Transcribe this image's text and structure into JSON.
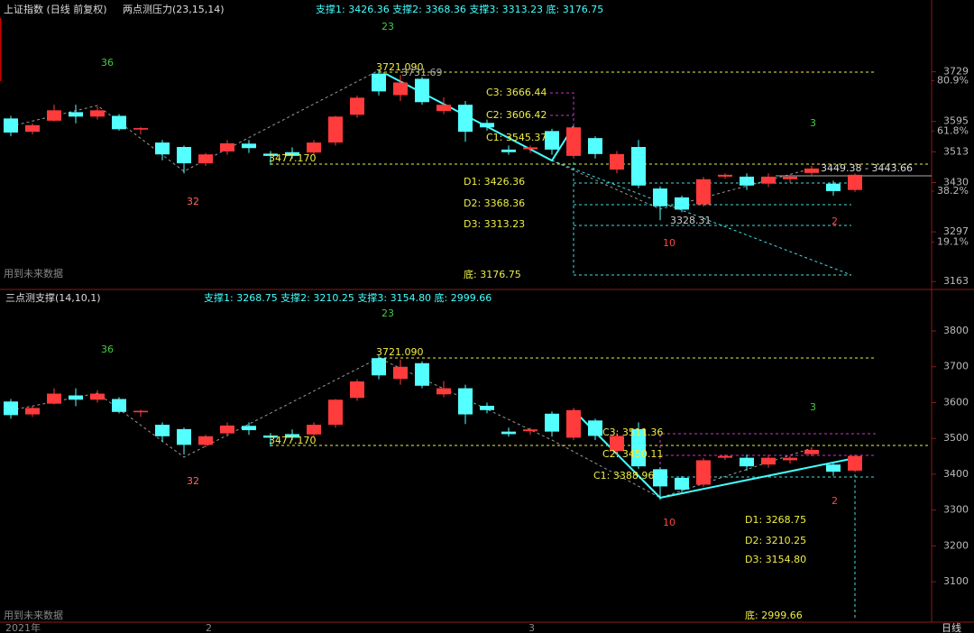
{
  "chart_data": [
    {
      "type": "candlestick",
      "title": "上证指数 (日线 前复权)",
      "indicator": "两点测压力(23,15,14)",
      "summary": "支撑1: 3426.36  支撑2: 3368.36  支撑3: 3313.23  底: 3176.75",
      "up_color": "#ff3b3b",
      "down_color": "#54ffff",
      "open": [
        3603,
        3567,
        3597,
        3620,
        3608,
        3610,
        3573,
        3538,
        3526,
        3482,
        3514,
        3535,
        3508,
        3512,
        3511,
        3538,
        3613,
        3724,
        3666,
        3710,
        3623,
        3640,
        3591,
        3519,
        3520,
        3569,
        3502,
        3550,
        3465,
        3526,
        3414,
        3390,
        3371,
        3446,
        3446,
        3427,
        3439,
        3456,
        3427,
        3410
      ],
      "high": [
        3610,
        3590,
        3640,
        3640,
        3635,
        3615,
        3580,
        3545,
        3530,
        3510,
        3545,
        3545,
        3515,
        3525,
        3545,
        3610,
        3665,
        3731.69,
        3720,
        3715,
        3660,
        3650,
        3600,
        3530,
        3530,
        3575,
        3585,
        3555,
        3515,
        3545,
        3420,
        3395,
        3445,
        3455,
        3455,
        3455,
        3450,
        3475,
        3435,
        3455
      ],
      "low": [
        3555,
        3560,
        3595,
        3590,
        3600,
        3570,
        3560,
        3490,
        3455,
        3475,
        3505,
        3510,
        3477.17,
        3495,
        3505,
        3530,
        3605,
        3665,
        3650,
        3640,
        3615,
        3540,
        3570,
        3505,
        3510,
        3505,
        3495,
        3495,
        3455,
        3415,
        3328.31,
        3350,
        3365,
        3440,
        3410,
        3418,
        3430,
        3450,
        3395,
        3405
      ],
      "close": [
        3565,
        3585,
        3625,
        3608,
        3625,
        3574,
        3577,
        3506,
        3482,
        3506,
        3536,
        3523,
        3502,
        3502,
        3538,
        3608,
        3659,
        3676,
        3700,
        3647,
        3640,
        3567,
        3579,
        3512,
        3525,
        3519,
        3579,
        3507,
        3507,
        3422,
        3366,
        3357,
        3439,
        3451,
        3422,
        3446,
        3446,
        3468,
        3407,
        3451
      ],
      "ylim": [
        3144,
        3874
      ],
      "yticks": [
        3729,
        3595,
        3513,
        3430,
        3297,
        3163
      ],
      "fib_ticks": [
        {
          "value": 3705,
          "label": "80.9%"
        },
        {
          "value": 3569,
          "label": "61.8%"
        },
        {
          "value": 3407,
          "label": "38.2%"
        },
        {
          "value": 3269,
          "label": "19.1%"
        }
      ],
      "annotations": [
        "23",
        "36",
        "32",
        "10",
        "3",
        "2",
        "3721.090",
        "3731.69",
        "3477.170",
        "C3: 3666.44",
        "C2: 3606.42",
        "C1: 3545.37",
        "D1: 3426.36",
        "D2: 3368.36",
        "D3: 3313.23",
        "底: 3176.75",
        "3449.38 - 3443.66",
        "3328.31",
        "用到未来数据"
      ]
    },
    {
      "type": "candlestick",
      "indicator": "三点测支撑(14,10,1)",
      "summary": "支撑1: 3268.75  支撑2: 3210.25  支撑3: 3154.80  底: 2999.66",
      "ylim": [
        2992,
        3868
      ],
      "yticks": [
        3800,
        3700,
        3600,
        3500,
        3400,
        3300,
        3200,
        3100
      ],
      "annotations": [
        "23",
        "36",
        "32",
        "10",
        "3",
        "2",
        "3721.090",
        "3477.170",
        "C3: 3511.36",
        "C2: 3450.11",
        "C1: 3388.96",
        "D1: 3268.75",
        "D2: 3210.25",
        "D3: 3154.80",
        "底: 2999.66",
        "用到未来数据"
      ],
      "x_labels": [
        "2021年",
        "2",
        "3"
      ],
      "period": "日线"
    }
  ]
}
